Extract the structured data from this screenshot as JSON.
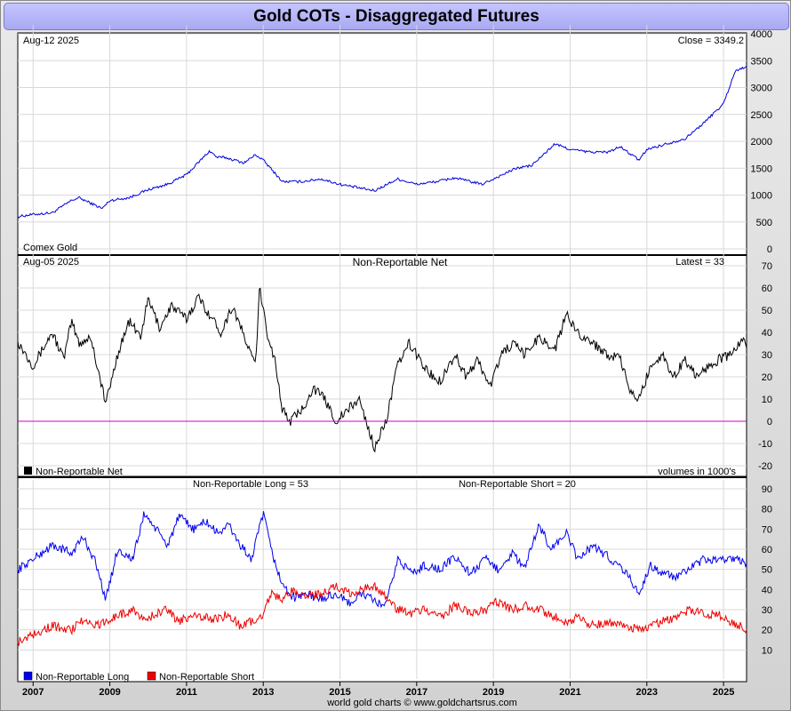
{
  "title": "Gold COTs - Disaggregated Futures",
  "footer": "world gold charts © www.goldchartsrus.com",
  "colors": {
    "price": "#0000dd",
    "net": "#000000",
    "long": "#0000ee",
    "short": "#ee0000",
    "zero_line": "#cc00cc",
    "title_bg": "#b4b4f8"
  },
  "x_axis": {
    "ticks": [
      "2007",
      "2009",
      "2011",
      "2013",
      "2015",
      "2017",
      "2019",
      "2021",
      "2023",
      "2025"
    ],
    "range": [
      2006.6,
      2025.6
    ]
  },
  "panels": {
    "price": {
      "date": "Aug-12  2025",
      "close": "Close = 3349.2",
      "caption": "Comex Gold"
    },
    "net": {
      "date": "Aug-05  2025",
      "name": "Non-Reportable Net",
      "latest": "Latest = 33",
      "legend": "Non-Reportable Net",
      "units": "volumes in 1000's"
    },
    "longshort": {
      "long_label": "Non-Reportable Long = 53",
      "short_label": "Non-Reportable Short = 20",
      "legend_long": "Non-Reportable Long",
      "legend_short": "Non-Reportable Short"
    }
  },
  "chart_data": [
    {
      "type": "line",
      "title": "Comex Gold",
      "ylim": [
        0,
        4000
      ],
      "yticks": [
        0,
        500,
        1000,
        1500,
        2000,
        2500,
        3000,
        3500,
        4000
      ],
      "series": [
        {
          "name": "Comex Gold",
          "x": [
            2006.6,
            2007.0,
            2007.5,
            2008.0,
            2008.2,
            2008.8,
            2009.0,
            2009.5,
            2010.0,
            2010.5,
            2011.0,
            2011.6,
            2011.8,
            2012.0,
            2012.5,
            2012.8,
            2013.0,
            2013.5,
            2014.0,
            2014.5,
            2015.0,
            2015.9,
            2016.5,
            2017.0,
            2017.5,
            2018.0,
            2018.7,
            2019.0,
            2019.6,
            2020.0,
            2020.6,
            2021.0,
            2021.5,
            2022.0,
            2022.3,
            2022.8,
            2023.0,
            2023.5,
            2024.0,
            2024.5,
            2025.0,
            2025.3,
            2025.6
          ],
          "values": [
            600,
            640,
            670,
            900,
            950,
            750,
            900,
            950,
            1100,
            1200,
            1380,
            1820,
            1700,
            1700,
            1600,
            1750,
            1650,
            1250,
            1250,
            1300,
            1200,
            1080,
            1300,
            1200,
            1250,
            1320,
            1200,
            1300,
            1500,
            1550,
            1950,
            1850,
            1800,
            1800,
            1900,
            1650,
            1850,
            1950,
            2050,
            2350,
            2700,
            3300,
            3400
          ]
        }
      ]
    },
    {
      "type": "line",
      "title": "Non-Reportable Net",
      "ylabel": "volumes in 1000's",
      "ylim": [
        -20,
        70
      ],
      "yticks": [
        -20,
        -10,
        0,
        10,
        20,
        30,
        40,
        50,
        60,
        70
      ],
      "series": [
        {
          "name": "Non-Reportable Net",
          "x": [
            2006.6,
            2007.0,
            2007.5,
            2007.8,
            2008.0,
            2008.2,
            2008.5,
            2008.8,
            2008.9,
            2009.2,
            2009.5,
            2009.8,
            2010.0,
            2010.3,
            2010.6,
            2011.0,
            2011.3,
            2011.6,
            2011.9,
            2012.2,
            2012.5,
            2012.8,
            2012.9,
            2013.1,
            2013.3,
            2013.5,
            2013.7,
            2014.0,
            2014.3,
            2014.6,
            2014.9,
            2015.2,
            2015.5,
            2015.9,
            2016.2,
            2016.5,
            2016.8,
            2017.0,
            2017.3,
            2017.6,
            2018.0,
            2018.3,
            2018.6,
            2018.9,
            2019.2,
            2019.5,
            2019.8,
            2020.2,
            2020.6,
            2020.9,
            2021.2,
            2021.6,
            2022.0,
            2022.3,
            2022.6,
            2022.8,
            2023.1,
            2023.4,
            2023.7,
            2024.0,
            2024.3,
            2024.6,
            2024.9,
            2025.2,
            2025.5,
            2025.6
          ],
          "values": [
            36,
            25,
            40,
            28,
            45,
            35,
            38,
            15,
            8,
            30,
            45,
            38,
            55,
            42,
            52,
            46,
            56,
            48,
            40,
            52,
            38,
            25,
            60,
            40,
            28,
            5,
            0,
            5,
            15,
            10,
            0,
            5,
            10,
            -12,
            0,
            25,
            35,
            30,
            22,
            18,
            30,
            20,
            28,
            15,
            30,
            35,
            30,
            38,
            32,
            48,
            40,
            35,
            30,
            28,
            12,
            10,
            25,
            30,
            20,
            28,
            20,
            25,
            28,
            30,
            37,
            33
          ]
        }
      ]
    },
    {
      "type": "line",
      "title": "",
      "ylim": [
        0,
        90
      ],
      "yticks": [
        10,
        20,
        30,
        40,
        50,
        60,
        70,
        80,
        90
      ],
      "series": [
        {
          "name": "Non-Reportable Long",
          "x": [
            2006.6,
            2007.0,
            2007.5,
            2008.0,
            2008.3,
            2008.6,
            2008.9,
            2009.2,
            2009.6,
            2009.9,
            2010.2,
            2010.5,
            2010.8,
            2011.2,
            2011.5,
            2011.8,
            2012.1,
            2012.4,
            2012.7,
            2013.0,
            2013.2,
            2013.5,
            2013.8,
            2014.1,
            2014.5,
            2014.9,
            2015.2,
            2015.6,
            2015.9,
            2016.2,
            2016.5,
            2016.9,
            2017.2,
            2017.6,
            2018.0,
            2018.4,
            2018.8,
            2019.1,
            2019.5,
            2019.8,
            2020.2,
            2020.5,
            2020.9,
            2021.2,
            2021.6,
            2022.0,
            2022.4,
            2022.8,
            2023.1,
            2023.4,
            2023.8,
            2024.1,
            2024.5,
            2024.9,
            2025.2,
            2025.6
          ],
          "values": [
            50,
            55,
            62,
            58,
            66,
            55,
            35,
            60,
            55,
            78,
            70,
            62,
            76,
            70,
            74,
            68,
            72,
            62,
            55,
            78,
            60,
            42,
            36,
            38,
            35,
            38,
            33,
            38,
            34,
            32,
            55,
            48,
            52,
            50,
            56,
            48,
            55,
            50,
            58,
            50,
            72,
            60,
            68,
            55,
            62,
            56,
            50,
            38,
            52,
            48,
            46,
            50,
            55,
            54,
            56,
            53
          ]
        },
        {
          "name": "Non-Reportable Short",
          "x": [
            2006.6,
            2007.0,
            2007.5,
            2008.0,
            2008.3,
            2008.6,
            2008.9,
            2009.2,
            2009.6,
            2009.9,
            2010.2,
            2010.5,
            2010.8,
            2011.2,
            2011.5,
            2011.8,
            2012.1,
            2012.4,
            2012.7,
            2013.0,
            2013.2,
            2013.5,
            2013.8,
            2014.1,
            2014.5,
            2014.9,
            2015.2,
            2015.6,
            2015.9,
            2016.2,
            2016.5,
            2016.9,
            2017.2,
            2017.6,
            2018.0,
            2018.4,
            2018.8,
            2019.1,
            2019.5,
            2019.8,
            2020.2,
            2020.5,
            2020.9,
            2021.2,
            2021.6,
            2022.0,
            2022.4,
            2022.8,
            2023.1,
            2023.4,
            2023.8,
            2024.1,
            2024.5,
            2024.9,
            2025.2,
            2025.6
          ],
          "values": [
            14,
            18,
            22,
            20,
            25,
            22,
            24,
            27,
            30,
            25,
            28,
            30,
            24,
            28,
            26,
            25,
            28,
            22,
            24,
            28,
            38,
            35,
            40,
            36,
            38,
            42,
            38,
            40,
            42,
            36,
            30,
            28,
            30,
            26,
            32,
            28,
            30,
            34,
            30,
            32,
            30,
            27,
            24,
            26,
            22,
            24,
            22,
            20,
            22,
            24,
            26,
            30,
            28,
            27,
            24,
            20
          ]
        }
      ]
    }
  ]
}
